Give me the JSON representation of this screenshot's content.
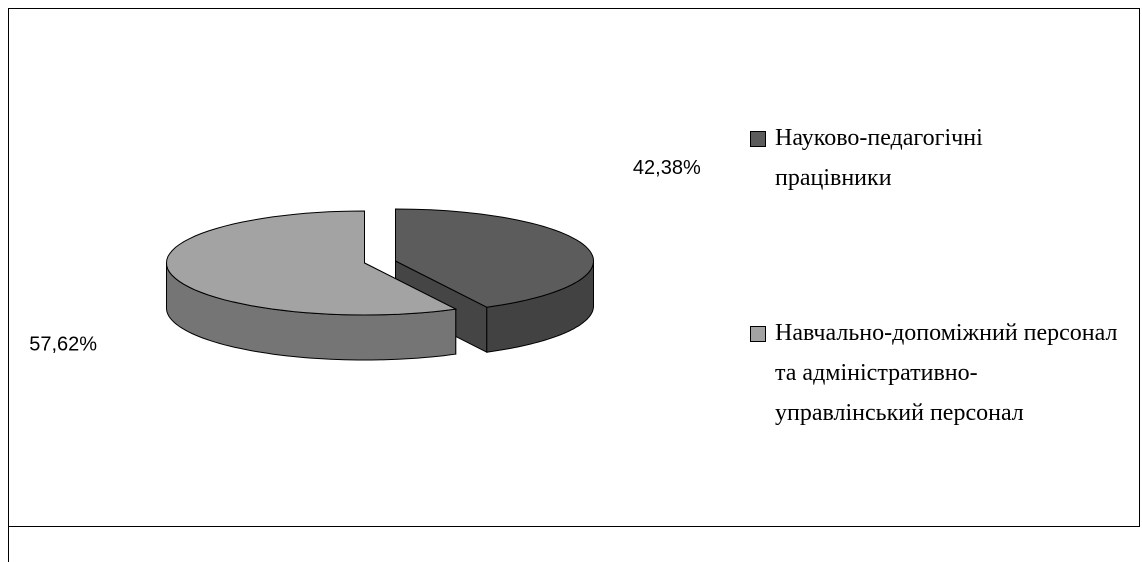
{
  "chart_data": {
    "type": "pie",
    "categories": [
      "Науково-педагогічні працівники",
      "Навчально-допоміжний персонал та адміністративно-управлінський персонал"
    ],
    "values": [
      42.38,
      57.62
    ],
    "value_labels": [
      "42,38%",
      "57,62%"
    ],
    "colors": [
      "#5c5c5c",
      "#a3a3a3"
    ],
    "legend": "right"
  }
}
